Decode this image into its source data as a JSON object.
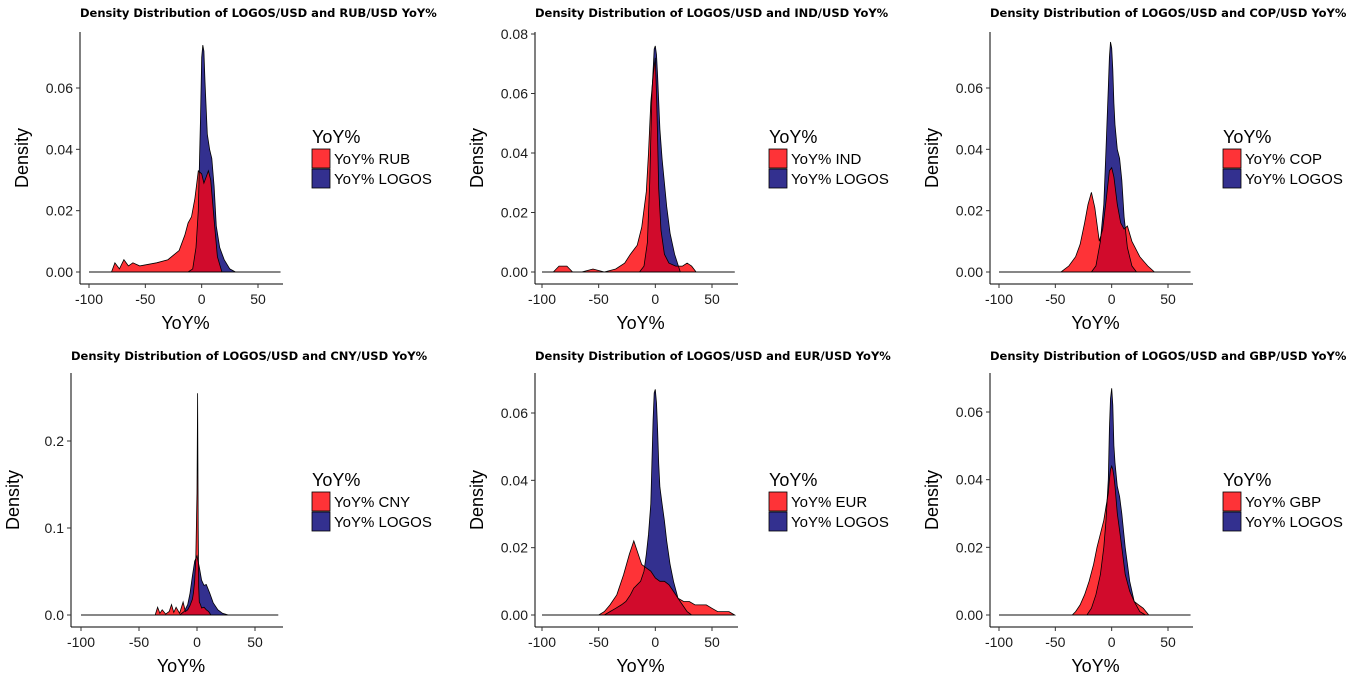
{
  "colors": {
    "other_currency": "#fe3337",
    "logos": "#33308f",
    "overlap": "#2c0e6e"
  },
  "chart_data": [
    {
      "type": "area",
      "title": "Density Distribution of LOGOS/USD and RUB/USD YoY%",
      "xlabel": "YoY%",
      "ylabel": "Density",
      "xlim": [
        -100,
        70
      ],
      "ylim": [
        0,
        0.076
      ],
      "xticks": [
        -100,
        -50,
        0,
        50
      ],
      "xtick_labels": [
        "-100",
        "-50",
        "0",
        "50"
      ],
      "yticks": [
        0,
        0.02,
        0.04,
        0.06
      ],
      "ytick_labels": [
        "0.00",
        "0.02",
        "0.04",
        "0.06"
      ],
      "legend": {
        "title": "YoY%",
        "placement": "right",
        "entries": [
          "YoY% RUB",
          "YoY% LOGOS"
        ]
      },
      "series": [
        {
          "name": "YoY% RUB",
          "color_role": "other_currency",
          "x": [
            -100,
            -80,
            -77,
            -73,
            -69,
            -65,
            -61,
            -55,
            -40,
            -30,
            -20,
            -15,
            -12,
            -9,
            -6,
            -3,
            0,
            2,
            4,
            6,
            8,
            11,
            14,
            18,
            70
          ],
          "y": [
            0,
            0,
            0.003,
            0.001,
            0.004,
            0.002,
            0.003,
            0.002,
            0.003,
            0.004,
            0.007,
            0.012,
            0.016,
            0.018,
            0.024,
            0.033,
            0.032,
            0.029,
            0.031,
            0.033,
            0.03,
            0.017,
            0.005,
            0,
            0
          ]
        },
        {
          "name": "YoY% LOGOS",
          "color_role": "logos",
          "x": [
            -100,
            -12,
            -8,
            -5,
            -3,
            -1,
            0,
            1,
            2,
            3,
            5,
            7,
            9,
            11,
            13,
            16,
            20,
            25,
            30,
            70
          ],
          "y": [
            0,
            0,
            0.001,
            0.008,
            0.02,
            0.05,
            0.07,
            0.074,
            0.072,
            0.062,
            0.045,
            0.04,
            0.037,
            0.028,
            0.015,
            0.008,
            0.004,
            0.001,
            0,
            0
          ]
        }
      ]
    },
    {
      "type": "area",
      "title": "Density Distribution of LOGOS/USD and IND/USD YoY%",
      "xlabel": "YoY%",
      "ylabel": "Density",
      "xlim": [
        -100,
        70
      ],
      "ylim": [
        0,
        0.08
      ],
      "xticks": [
        -100,
        -50,
        0,
        50
      ],
      "xtick_labels": [
        "-100",
        "-50",
        "0",
        "50"
      ],
      "yticks": [
        0,
        0.02,
        0.04,
        0.06,
        0.08
      ],
      "ytick_labels": [
        "0.00",
        "0.02",
        "0.04",
        "0.06",
        "0.08"
      ],
      "legend": {
        "title": "YoY%",
        "placement": "right",
        "entries": [
          "YoY% IND",
          "YoY% LOGOS"
        ]
      },
      "series": [
        {
          "name": "YoY% IND",
          "color_role": "other_currency",
          "x": [
            -100,
            -90,
            -85,
            -78,
            -73,
            -65,
            -55,
            -45,
            -35,
            -27,
            -22,
            -16,
            -12,
            -8,
            -6,
            -4,
            -2,
            0,
            1,
            2,
            3,
            5,
            8,
            12,
            18,
            24,
            28,
            32,
            36,
            70
          ],
          "y": [
            0,
            0,
            0.002,
            0.002,
            0,
            0,
            0.001,
            0,
            0.001,
            0.003,
            0.006,
            0.009,
            0.015,
            0.027,
            0.04,
            0.057,
            0.066,
            0.072,
            0.06,
            0.045,
            0.028,
            0.014,
            0.006,
            0.003,
            0.002,
            0.002,
            0.003,
            0.002,
            0,
            0
          ]
        },
        {
          "name": "YoY% LOGOS",
          "color_role": "logos",
          "x": [
            -100,
            -14,
            -10,
            -7,
            -5,
            -3,
            -1,
            0,
            1,
            2,
            4,
            6,
            8,
            10,
            13,
            17,
            22,
            70
          ],
          "y": [
            0,
            0,
            0.002,
            0.01,
            0.03,
            0.06,
            0.075,
            0.076,
            0.073,
            0.066,
            0.048,
            0.038,
            0.03,
            0.022,
            0.013,
            0.006,
            0,
            0
          ]
        }
      ]
    },
    {
      "type": "area",
      "title": "Density Distribution of LOGOS/USD and COP/USD YoY%",
      "xlabel": "YoY%",
      "ylabel": "Density",
      "xlim": [
        -100,
        70
      ],
      "ylim": [
        0,
        0.076
      ],
      "xticks": [
        -100,
        -50,
        0,
        50
      ],
      "xtick_labels": [
        "-100",
        "-50",
        "0",
        "50"
      ],
      "yticks": [
        0,
        0.02,
        0.04,
        0.06
      ],
      "ytick_labels": [
        "0.00",
        "0.02",
        "0.04",
        "0.06"
      ],
      "legend": {
        "title": "YoY%",
        "placement": "right",
        "entries": [
          "YoY% COP",
          "YoY% LOGOS"
        ]
      },
      "series": [
        {
          "name": "YoY% COP",
          "color_role": "other_currency",
          "x": [
            -100,
            -45,
            -38,
            -32,
            -28,
            -24,
            -21,
            -18,
            -15,
            -11,
            -8,
            -5,
            -2,
            0,
            2,
            5,
            8,
            11,
            14,
            18,
            25,
            32,
            38,
            70
          ],
          "y": [
            0,
            0,
            0.002,
            0.005,
            0.009,
            0.016,
            0.022,
            0.026,
            0.021,
            0.01,
            0.014,
            0.023,
            0.033,
            0.034,
            0.031,
            0.022,
            0.016,
            0.014,
            0.015,
            0.01,
            0.005,
            0.002,
            0,
            0
          ]
        },
        {
          "name": "YoY% LOGOS",
          "color_role": "logos",
          "x": [
            -100,
            -18,
            -14,
            -10,
            -7,
            -5,
            -3,
            -2,
            -1,
            0,
            1,
            2,
            3,
            5,
            7,
            9,
            11,
            14,
            18,
            22,
            70
          ],
          "y": [
            0,
            0,
            0.002,
            0.01,
            0.022,
            0.04,
            0.06,
            0.07,
            0.075,
            0.073,
            0.066,
            0.055,
            0.048,
            0.04,
            0.037,
            0.03,
            0.018,
            0.008,
            0.002,
            0,
            0
          ]
        }
      ]
    },
    {
      "type": "area",
      "title": "Density Distribution of LOGOS/USD and CNY/USD YoY%",
      "xlabel": "YoY%",
      "ylabel": "Density",
      "xlim": [
        -100,
        70
      ],
      "ylim": [
        0,
        0.27
      ],
      "xticks": [
        -100,
        -50,
        0,
        50
      ],
      "xtick_labels": [
        "-100",
        "-50",
        "0",
        "50"
      ],
      "yticks": [
        0,
        0.1,
        0.2
      ],
      "ytick_labels": [
        "0.0",
        "0.1",
        "0.2"
      ],
      "legend": {
        "title": "YoY%",
        "placement": "right",
        "entries": [
          "YoY% CNY",
          "YoY% LOGOS"
        ]
      },
      "series": [
        {
          "name": "YoY% CNY",
          "color_role": "other_currency",
          "x": [
            -100,
            -36,
            -34,
            -32,
            -30,
            -27,
            -24,
            -22,
            -20,
            -18,
            -15,
            -12,
            -10,
            -8,
            -6,
            -4,
            -3,
            -2,
            -1,
            0,
            0.5,
            1,
            1.5,
            2,
            3,
            4,
            6,
            8,
            10,
            12,
            70
          ],
          "y": [
            0,
            0,
            0.009,
            0.002,
            0.006,
            0.001,
            0.004,
            0.012,
            0.003,
            0.009,
            0.002,
            0.015,
            0.004,
            0.006,
            0.011,
            0.018,
            0.026,
            0.04,
            0.065,
            0.14,
            0.255,
            0.1,
            0.032,
            0.015,
            0.012,
            0.008,
            0.009,
            0.006,
            0.004,
            0,
            0
          ]
        },
        {
          "name": "YoY% LOGOS",
          "color_role": "logos",
          "x": [
            -100,
            -15,
            -11,
            -8,
            -6,
            -4,
            -2,
            0,
            2,
            4,
            6,
            8,
            11,
            14,
            18,
            22,
            27,
            70
          ],
          "y": [
            0,
            0,
            0.004,
            0.012,
            0.025,
            0.045,
            0.062,
            0.068,
            0.055,
            0.04,
            0.034,
            0.035,
            0.025,
            0.014,
            0.006,
            0.002,
            0,
            0
          ]
        }
      ]
    },
    {
      "type": "area",
      "title": "Density Distribution of LOGOS/USD and EUR/USD YoY%",
      "xlabel": "YoY%",
      "ylabel": "Density",
      "xlim": [
        -100,
        70
      ],
      "ylim": [
        0,
        0.07
      ],
      "xticks": [
        -100,
        -50,
        0,
        50
      ],
      "xtick_labels": [
        "-100",
        "-50",
        "0",
        "50"
      ],
      "yticks": [
        0,
        0.02,
        0.04,
        0.06
      ],
      "ytick_labels": [
        "0.00",
        "0.02",
        "0.04",
        "0.06"
      ],
      "legend": {
        "title": "YoY%",
        "placement": "right",
        "entries": [
          "YoY% EUR",
          "YoY% LOGOS"
        ]
      },
      "series": [
        {
          "name": "YoY% EUR",
          "color_role": "other_currency",
          "x": [
            -100,
            -50,
            -45,
            -40,
            -34,
            -28,
            -23,
            -19,
            -16,
            -12,
            -8,
            -4,
            0,
            4,
            8,
            12,
            16,
            20,
            25,
            30,
            35,
            40,
            45,
            50,
            55,
            60,
            65,
            70
          ],
          "y": [
            0,
            0,
            0.001,
            0.003,
            0.006,
            0.012,
            0.018,
            0.022,
            0.019,
            0.015,
            0.014,
            0.013,
            0.011,
            0.01,
            0.01,
            0.009,
            0.007,
            0.005,
            0.004,
            0.004,
            0.003,
            0.003,
            0.003,
            0.002,
            0.001,
            0.001,
            0.001,
            0
          ]
        },
        {
          "name": "YoY% LOGOS",
          "color_role": "logos",
          "x": [
            -100,
            -45,
            -40,
            -35,
            -30,
            -26,
            -22,
            -19,
            -16,
            -13,
            -10,
            -8,
            -6,
            -4,
            -3,
            -2,
            -1,
            0,
            1,
            2,
            3,
            4,
            6,
            8,
            10,
            13,
            16,
            20,
            24,
            28,
            32,
            70
          ],
          "y": [
            0,
            0,
            0.001,
            0.002,
            0.003,
            0.004,
            0.006,
            0.008,
            0.009,
            0.01,
            0.013,
            0.018,
            0.024,
            0.033,
            0.045,
            0.058,
            0.066,
            0.067,
            0.063,
            0.055,
            0.045,
            0.038,
            0.033,
            0.028,
            0.022,
            0.015,
            0.01,
            0.005,
            0.003,
            0.001,
            0,
            0
          ]
        }
      ]
    },
    {
      "type": "area",
      "title": "Density Distribution of LOGOS/USD and GBP/USD YoY%",
      "xlabel": "YoY%",
      "ylabel": "Density",
      "xlim": [
        -100,
        70
      ],
      "ylim": [
        0,
        0.07
      ],
      "xticks": [
        -100,
        -50,
        0,
        50
      ],
      "xtick_labels": [
        "-100",
        "-50",
        "0",
        "50"
      ],
      "yticks": [
        0,
        0.02,
        0.04,
        0.06
      ],
      "ytick_labels": [
        "0.00",
        "0.02",
        "0.04",
        "0.06"
      ],
      "legend": {
        "title": "YoY%",
        "placement": "right",
        "entries": [
          "YoY% GBP",
          "YoY% LOGOS"
        ]
      },
      "series": [
        {
          "name": "YoY% GBP",
          "color_role": "other_currency",
          "x": [
            -100,
            -35,
            -32,
            -28,
            -24,
            -20,
            -16,
            -13,
            -10,
            -7,
            -5,
            -3,
            -2,
            -1,
            0,
            1,
            2,
            3,
            5,
            7,
            9,
            12,
            16,
            20,
            24,
            28,
            33,
            70
          ],
          "y": [
            0,
            0,
            0.001,
            0.003,
            0.006,
            0.01,
            0.015,
            0.02,
            0.024,
            0.028,
            0.032,
            0.036,
            0.04,
            0.043,
            0.044,
            0.043,
            0.041,
            0.038,
            0.03,
            0.025,
            0.02,
            0.012,
            0.007,
            0.004,
            0.003,
            0.002,
            0,
            0
          ]
        },
        {
          "name": "YoY% LOGOS",
          "color_role": "logos",
          "x": [
            -100,
            -22,
            -18,
            -14,
            -10,
            -7,
            -5,
            -3,
            -2,
            -1,
            0,
            1,
            2,
            3,
            5,
            7,
            9,
            12,
            16,
            20,
            25,
            30,
            70
          ],
          "y": [
            0,
            0,
            0.002,
            0.006,
            0.012,
            0.02,
            0.028,
            0.04,
            0.055,
            0.064,
            0.067,
            0.062,
            0.05,
            0.045,
            0.038,
            0.035,
            0.03,
            0.02,
            0.01,
            0.004,
            0.001,
            0,
            0
          ]
        }
      ]
    }
  ]
}
